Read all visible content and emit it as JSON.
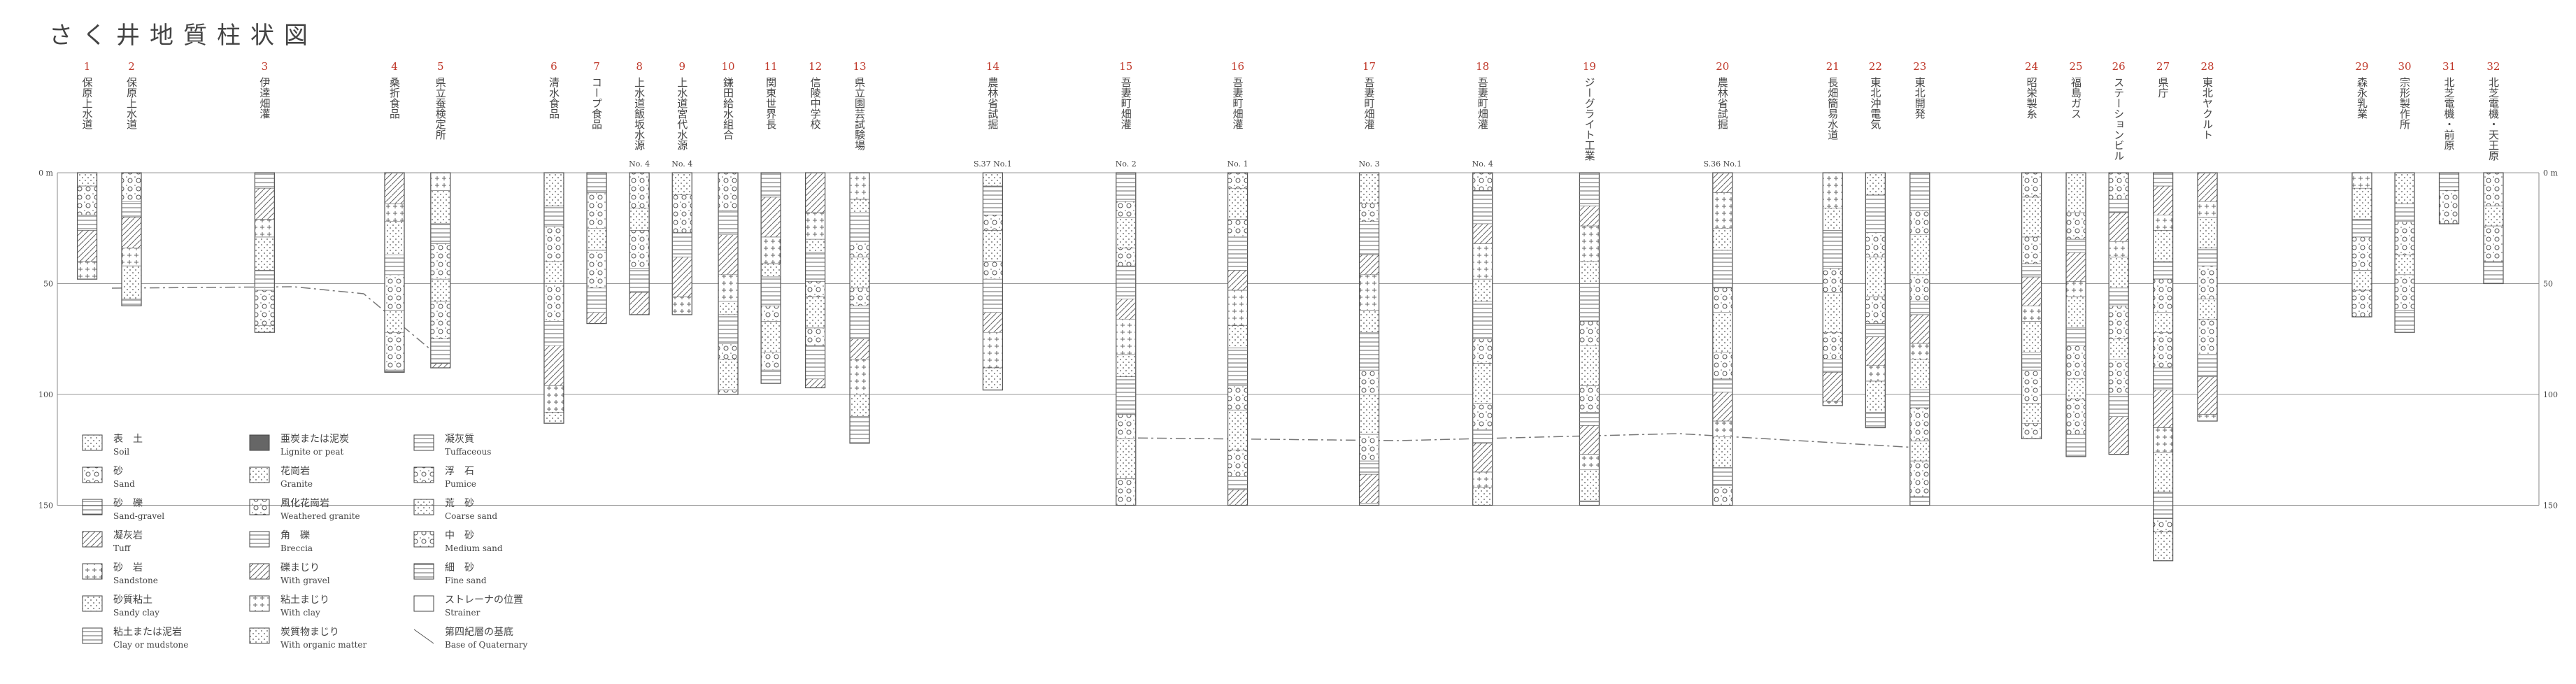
{
  "title": "さく井地質柱状図",
  "depth_axis": {
    "ylim": [
      0,
      175
    ],
    "yticks": [
      {
        "value": 0,
        "label": "0 m"
      },
      50,
      100,
      150
    ]
  },
  "wells": [
    {
      "number": "1",
      "name": "保原上水道",
      "depth": 48
    },
    {
      "number": "2",
      "name": "保原上水道",
      "depth": 60
    },
    {
      "number": "3",
      "name": "伊達畑灌",
      "depth": 72
    },
    {
      "number": "4",
      "name": "桑折食品",
      "depth": 90
    },
    {
      "number": "5",
      "name": "県立蚕検定所",
      "depth": 88
    },
    {
      "number": "6",
      "name": "清水食品",
      "depth": 113
    },
    {
      "number": "7",
      "name": "コープ食品",
      "depth": 68
    },
    {
      "number": "8",
      "name": "上水道飯坂水源",
      "sub": "No. 4",
      "depth": 64
    },
    {
      "number": "9",
      "name": "上水道宮代水源",
      "sub": "No. 4",
      "depth": 64
    },
    {
      "number": "10",
      "name": "鎌田給水組合",
      "depth": 100
    },
    {
      "number": "11",
      "name": "関東世界長",
      "depth": 95
    },
    {
      "number": "12",
      "name": "信陵中学校",
      "depth": 97
    },
    {
      "number": "13",
      "name": "県立園芸試験場",
      "depth": 122
    },
    {
      "number": "14",
      "name": "農林省試掘",
      "sub": "S.37 No.1",
      "depth": 98
    },
    {
      "number": "15",
      "name": "吾妻町畑灌",
      "sub": "No. 2",
      "depth": 150
    },
    {
      "number": "16",
      "name": "吾妻町畑灌",
      "sub": "No. 1",
      "depth": 150
    },
    {
      "number": "17",
      "name": "吾妻町畑灌",
      "sub": "No. 3",
      "depth": 150
    },
    {
      "number": "18",
      "name": "吾妻町畑灌",
      "sub": "No. 4",
      "depth": 150
    },
    {
      "number": "19",
      "name": "ジーグライト工業",
      "depth": 150
    },
    {
      "number": "20",
      "name": "農林省試掘",
      "sub": "S.36 No.1",
      "depth": 150
    },
    {
      "number": "21",
      "name": "長畑簡易水道",
      "depth": 105
    },
    {
      "number": "22",
      "name": "東北沖電気",
      "depth": 115
    },
    {
      "number": "23",
      "name": "東北開発",
      "depth": 150
    },
    {
      "number": "24",
      "name": "昭栄製糸",
      "depth": 120
    },
    {
      "number": "25",
      "name": "福島ガス",
      "depth": 128
    },
    {
      "number": "26",
      "name": "ステーションビル",
      "depth": 127
    },
    {
      "number": "27",
      "name": "県庁",
      "depth": 175
    },
    {
      "number": "28",
      "name": "東北ヤクルト",
      "depth": 112
    },
    {
      "number": "29",
      "name": "森永乳業",
      "depth": 65
    },
    {
      "number": "30",
      "name": "宗形製作所",
      "depth": 72
    },
    {
      "number": "31",
      "name": "北芝電機・前原",
      "depth": 23
    },
    {
      "number": "32",
      "name": "北芝電機・天王原",
      "depth": 50
    }
  ],
  "legend": [
    {
      "jp": "表　土",
      "en": "Soil"
    },
    {
      "jp": "砂",
      "en": "Sand"
    },
    {
      "jp": "砂　礫",
      "en": "Sand-gravel"
    },
    {
      "jp": "凝灰岩",
      "en": "Tuff"
    },
    {
      "jp": "砂　岩",
      "en": "Sandstone"
    },
    {
      "jp": "砂質粘土",
      "en": "Sandy clay"
    },
    {
      "jp": "粘土または泥岩",
      "en": "Clay or mudstone"
    },
    {
      "jp": "亜炭または泥炭",
      "en": "Lignite or peat"
    },
    {
      "jp": "花崗岩",
      "en": "Granite"
    },
    {
      "jp": "風化花崗岩",
      "en": "Weathered granite"
    },
    {
      "jp": "角　礫",
      "en": "Breccia"
    },
    {
      "jp": "礫まじり",
      "en": "With gravel"
    },
    {
      "jp": "粘土まじり",
      "en": "With clay"
    },
    {
      "jp": "炭質物まじり",
      "en": "With organic matter"
    },
    {
      "jp": "凝灰質",
      "en": "Tuffaceous"
    },
    {
      "jp": "浮　石",
      "en": "Pumice"
    },
    {
      "jp": "荒　砂",
      "en": "Coarse sand"
    },
    {
      "jp": "中　砂",
      "en": "Medium sand"
    },
    {
      "jp": "細　砂",
      "en": "Fine sand"
    },
    {
      "jp": "ストレーナの位置",
      "en": "Strainer"
    },
    {
      "jp": "第四紀層の基底",
      "en": "Base of Quaternary"
    }
  ]
}
